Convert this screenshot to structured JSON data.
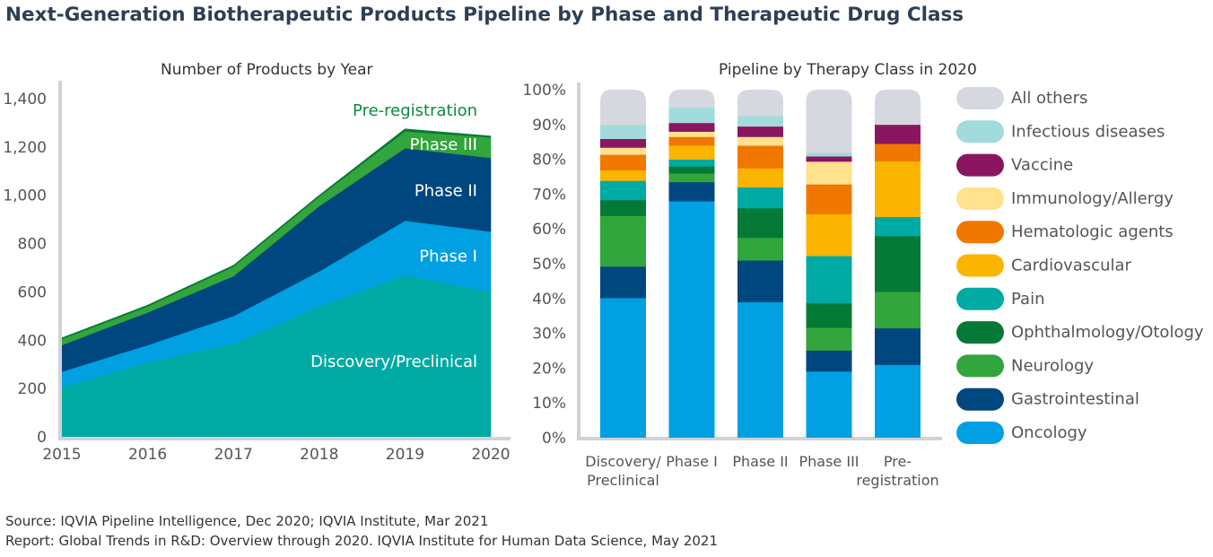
{
  "title": "Next-Generation Biotherapeutic Products Pipeline by Phase and Therapeutic Drug Class",
  "footer": {
    "source": "Source: IQVIA Pipeline Intelligence, Dec 2020; IQVIA Institute, Mar 2021",
    "report": "Report: Global Trends in R&D: Overview through 2020. IQVIA Institute for Human Data Science, May 2021"
  },
  "chart_data": [
    {
      "type": "area",
      "stacked": true,
      "title": "Number of Products by Year",
      "xlabel": "",
      "ylabel": "",
      "x": [
        "2015",
        "2016",
        "2017",
        "2018",
        "2019",
        "2020"
      ],
      "ylim": [
        0,
        1400
      ],
      "yticks": [
        0,
        200,
        400,
        600,
        800,
        "1,000",
        "1,200",
        "1,400"
      ],
      "ytick_values": [
        0,
        200,
        400,
        600,
        800,
        1000,
        1200,
        1400
      ],
      "grid": false,
      "series": [
        {
          "name": "Discovery/Preclinical",
          "color": "#00aaa4",
          "label_color": "#ffffff",
          "values": [
            205,
            310,
            385,
            540,
            670,
            600
          ]
        },
        {
          "name": "Phase I",
          "color": "#00a0e3",
          "label_color": "#ffffff",
          "values": [
            65,
            70,
            115,
            145,
            225,
            250
          ]
        },
        {
          "name": "Phase II",
          "color": "#00467f",
          "label_color": "#ffffff",
          "values": [
            110,
            135,
            165,
            270,
            300,
            305
          ]
        },
        {
          "name": "Phase III",
          "color": "#32a53c",
          "label_color": "#ffffff",
          "values": [
            25,
            25,
            40,
            40,
            70,
            85
          ]
        },
        {
          "name": "Pre-registration",
          "color": "#047a36",
          "label_color": "#0b8b3f",
          "values": [
            5,
            5,
            5,
            5,
            10,
            5
          ]
        }
      ]
    },
    {
      "type": "bar",
      "stacked": true,
      "percent": true,
      "title": "Pipeline by Therapy Class in 2020",
      "categories": [
        "Discovery/\nPreclinical",
        "Phase I",
        "Phase II",
        "Phase III",
        "Pre-\nregistration"
      ],
      "ylim": [
        0,
        100
      ],
      "yticks": [
        "0%",
        "10%",
        "20%",
        "30%",
        "40%",
        "50%",
        "60%",
        "70%",
        "80%",
        "90%",
        "100%"
      ],
      "legend_position": "right",
      "series": [
        {
          "name": "Oncology",
          "color": "#00a0e3",
          "values": [
            40,
            68,
            39,
            19,
            21
          ]
        },
        {
          "name": "Gastrointestinal",
          "color": "#00467f",
          "values": [
            9,
            5.5,
            12,
            6,
            10.5
          ]
        },
        {
          "name": "Neurology",
          "color": "#32a53c",
          "values": [
            14.5,
            2.5,
            6.5,
            6.5,
            10.5
          ]
        },
        {
          "name": "Ophthalmology/Otology",
          "color": "#047a36",
          "values": [
            4.5,
            2,
            8.5,
            7,
            16
          ]
        },
        {
          "name": "Pain",
          "color": "#00aaa4",
          "values": [
            5.5,
            2,
            6,
            13.5,
            5.5
          ]
        },
        {
          "name": "Cardiovascular",
          "color": "#fbb400",
          "values": [
            3,
            4,
            5.5,
            12,
            16
          ]
        },
        {
          "name": "Hematologic agents",
          "color": "#f07800",
          "values": [
            4.5,
            2.5,
            6.5,
            8.5,
            5
          ]
        },
        {
          "name": "Immunology/Allergy",
          "color": "#ffe18e",
          "values": [
            2,
            1.5,
            2.5,
            6.5,
            0
          ]
        },
        {
          "name": "Vaccine",
          "color": "#8a1662",
          "values": [
            2.5,
            2.5,
            3,
            1.5,
            5.5
          ]
        },
        {
          "name": "Infectious diseases",
          "color": "#a2dbdb",
          "values": [
            4,
            4.5,
            3,
            1,
            0
          ]
        },
        {
          "name": "All others",
          "color": "#d5d8de",
          "values": [
            10,
            5,
            7.5,
            18,
            10
          ]
        }
      ]
    }
  ]
}
